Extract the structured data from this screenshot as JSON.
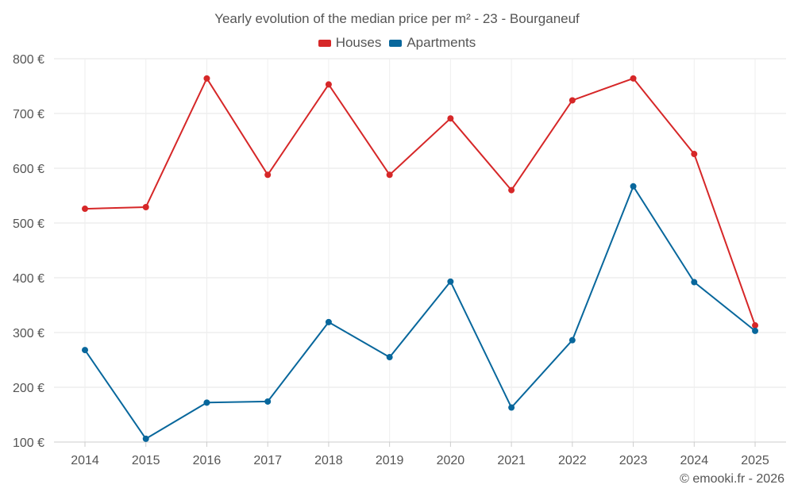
{
  "chart_data": {
    "type": "line",
    "title": "Yearly evolution of the median price per m² - 23 - Bourganeuf",
    "categories": [
      "2014",
      "2015",
      "2016",
      "2017",
      "2018",
      "2019",
      "2020",
      "2021",
      "2022",
      "2023",
      "2024",
      "2025"
    ],
    "series": [
      {
        "name": "Houses",
        "color": "#d62728",
        "values": [
          526,
          529,
          764,
          588,
          753,
          588,
          691,
          560,
          724,
          764,
          626,
          313
        ]
      },
      {
        "name": "Apartments",
        "color": "#08679c",
        "values": [
          268,
          106,
          172,
          174,
          319,
          255,
          393,
          163,
          286,
          567,
          392,
          303
        ]
      }
    ],
    "yticks": [
      "100 €",
      "200 €",
      "300 €",
      "400 €",
      "500 €",
      "600 €",
      "700 €",
      "800 €"
    ],
    "ytick_values": [
      100,
      200,
      300,
      400,
      500,
      600,
      700,
      800
    ],
    "ylim": [
      100,
      800
    ],
    "xlabel": "",
    "ylabel": "",
    "grid": true,
    "legend_position": "top-center"
  },
  "credit": "© emooki.fr - 2026"
}
